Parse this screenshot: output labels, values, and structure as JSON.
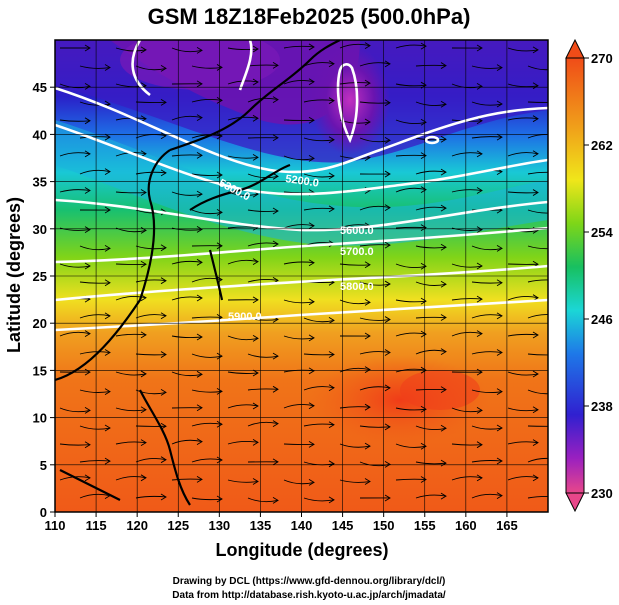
{
  "title": "GSM 18Z18Feb2025 (500.0hPa)",
  "xlabel": "Longitude (degrees)",
  "ylabel": "Latitude  (degrees)",
  "credits": [
    "Drawing by DCL (https://www.gfd-dennou.org/library/dcl/)",
    "Data from http://database.rish.kyoto-u.ac.jp/arch/jmadata/"
  ],
  "map": {
    "type": "temperature and wind streamlines map",
    "xlim": [
      110,
      170
    ],
    "ylim": [
      0,
      50
    ],
    "grid": true,
    "x_ticks": [
      "110",
      "115",
      "120",
      "125",
      "130",
      "135",
      "140",
      "145",
      "150",
      "155",
      "160",
      "165"
    ],
    "y_ticks": [
      "0",
      "5",
      "10",
      "15",
      "20",
      "25",
      "30",
      "35",
      "40",
      "45"
    ]
  },
  "colorbar": {
    "range": [
      230,
      270
    ],
    "ticks": [
      "270",
      "262",
      "254",
      "246",
      "238",
      "230"
    ],
    "colors": [
      "#e8478a",
      "#7a17b8",
      "#2b1bd0",
      "#1e78e8",
      "#1bd6d6",
      "#18c060",
      "#7ed618",
      "#f0e61a",
      "#f0a01a",
      "#f06018",
      "#f04c18"
    ]
  },
  "contour_labels": [
    "5300.0",
    "5200.0",
    "5600.0",
    "5700.0",
    "5800.0",
    "5900.0"
  ]
}
